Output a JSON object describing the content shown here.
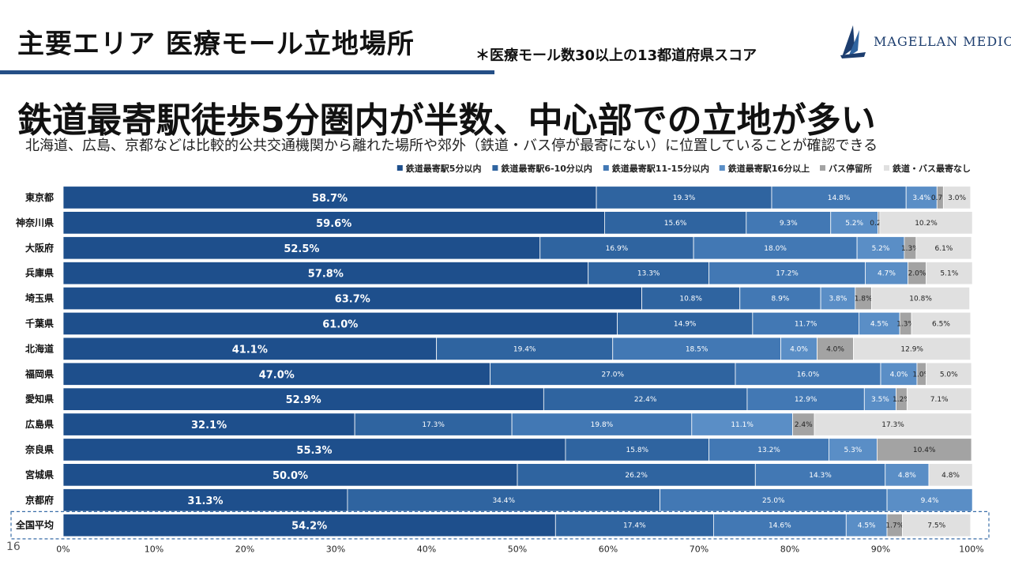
{
  "slide": {
    "title": "主要エリア 医療モール立地場所",
    "note": "＊医療モール数30以上の13都道府県スコア",
    "headline": "鉄道最寄駅徒歩5分圏内が半数、中心部での立地が多い",
    "subheadline": "北海道、広島、京都などは比較的公共交通機関から離れた場所や郊外（鉄道・バス停が最寄にない）に位置していることが確認できる",
    "page_number": "16"
  },
  "logo": {
    "text": "MAGELLAN MEDICAL",
    "icon": "sail-logo-icon",
    "color": "#1c3d6e"
  },
  "chart_data": {
    "type": "bar",
    "orientation": "horizontal",
    "stacked": true,
    "percent": true,
    "categories": [
      "東京都",
      "神奈川県",
      "大阪府",
      "兵庫県",
      "埼玉県",
      "千葉県",
      "北海道",
      "福岡県",
      "愛知県",
      "広島県",
      "奈良県",
      "宮城県",
      "京都府",
      "全国平均"
    ],
    "highlight_category": "全国平均",
    "series": [
      {
        "name": "鉄道最寄駅5分以内",
        "color": "#1e4f8c",
        "values": [
          58.7,
          59.6,
          52.5,
          57.8,
          63.7,
          61.0,
          41.1,
          47.0,
          52.9,
          32.1,
          55.3,
          50.0,
          31.3,
          54.2
        ],
        "labels": [
          "58.7%",
          "59.6%",
          "52.5%",
          "57.8%",
          "63.7%",
          "61.0%",
          "41.1%",
          "47.0%",
          "52.9%",
          "32.1%",
          "55.3%",
          "50.0%",
          "31.3%",
          "54.2%"
        ]
      },
      {
        "name": "鉄道最寄駅6-10分以内",
        "color": "#2f64a0",
        "values": [
          19.3,
          15.6,
          16.9,
          13.3,
          10.8,
          14.9,
          19.4,
          27.0,
          22.4,
          17.3,
          15.8,
          26.2,
          34.4,
          17.4
        ],
        "labels": [
          "19.3%",
          "15.6%",
          "16.9%",
          "13.3%",
          "10.8%",
          "14.9%",
          "19.4%",
          "27.0%",
          "22.4%",
          "17.3%",
          "15.8%",
          "26.2%",
          "34.4%",
          "17.4%"
        ]
      },
      {
        "name": "鉄道最寄駅11-15分以内",
        "color": "#4278b4",
        "values": [
          14.8,
          9.3,
          18.0,
          17.2,
          8.9,
          11.7,
          18.5,
          16.0,
          12.9,
          19.8,
          13.2,
          14.3,
          25.0,
          14.6
        ],
        "labels": [
          "14.8%",
          "9.3%",
          "18.0%",
          "17.2%",
          "8.9%",
          "11.7%",
          "18.5%",
          "16.0%",
          "12.9%",
          "19.8%",
          "13.2%",
          "14.3%",
          "25.0%",
          "14.6%"
        ]
      },
      {
        "name": "鉄道最寄駅16分以上",
        "color": "#5a8ec6",
        "values": [
          3.4,
          5.2,
          5.2,
          4.7,
          3.8,
          4.5,
          4.0,
          4.0,
          3.5,
          11.1,
          5.3,
          4.8,
          9.4,
          4.5
        ],
        "labels": [
          "3.4%",
          "5.2%",
          "5.2%",
          "4.7%",
          "3.8%",
          "4.5%",
          "4.0%",
          "4.0%",
          "3.5%",
          "11.1%",
          "5.3%",
          "4.8%",
          "9.4%",
          "4.5%"
        ]
      },
      {
        "name": "バス停留所",
        "color": "#a3a3a3",
        "values": [
          0.7,
          0.2,
          1.3,
          2.0,
          1.8,
          1.3,
          4.0,
          1.0,
          1.2,
          2.4,
          10.4,
          0,
          0,
          1.7
        ],
        "labels": [
          "0.7%",
          "0.2%",
          "1.3%",
          "2.0%",
          "1.8%",
          "1.3%",
          "4.0%",
          "1.0%",
          "1.2%",
          "2.4%",
          "10.4%",
          "",
          "",
          "1.7%"
        ]
      },
      {
        "name": "鉄道・バス最寄なし",
        "color": "#e0e0e0",
        "values": [
          3.0,
          10.2,
          6.1,
          5.1,
          10.8,
          6.5,
          12.9,
          5.0,
          7.1,
          17.3,
          0,
          4.8,
          0,
          7.5
        ],
        "labels": [
          "3.0%",
          "10.2%",
          "6.1%",
          "5.1%",
          "10.8%",
          "6.5%",
          "12.9%",
          "5.0%",
          "7.1%",
          "17.3%",
          "",
          "4.8%",
          "",
          "7.5%"
        ]
      }
    ],
    "xlim": [
      0,
      100
    ],
    "x_ticks": [
      "0%",
      "10%",
      "20%",
      "30%",
      "40%",
      "50%",
      "60%",
      "70%",
      "80%",
      "90%",
      "100%"
    ],
    "legend_position": "top-right",
    "grid": false
  }
}
